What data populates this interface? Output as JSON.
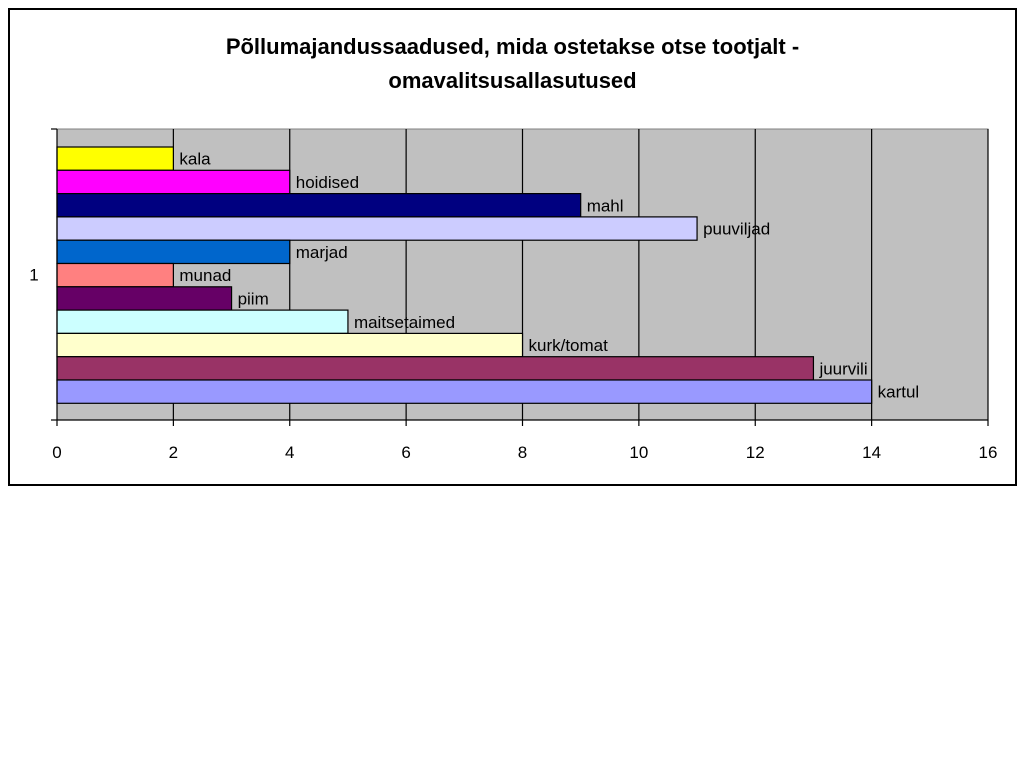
{
  "chart_data": {
    "type": "bar",
    "orientation": "horizontal",
    "title_lines": [
      "Põllumajandussaadused, mida ostetakse otse tootjalt -",
      "omavalitsusallasutused"
    ],
    "category_axis_label": "1",
    "xlim": [
      0,
      16
    ],
    "xticks": [
      0,
      2,
      4,
      6,
      8,
      10,
      12,
      14,
      16
    ],
    "grid": true,
    "legend": "none",
    "plot_background": "#c0c0c0",
    "series": [
      {
        "name": "kala",
        "value": 2,
        "color": "#ffff00"
      },
      {
        "name": "hoidised",
        "value": 4,
        "color": "#ff00ff"
      },
      {
        "name": "mahl",
        "value": 9,
        "color": "#000080"
      },
      {
        "name": "puuviljad",
        "value": 11,
        "color": "#ccccff"
      },
      {
        "name": "marjad",
        "value": 4,
        "color": "#0066cc"
      },
      {
        "name": "munad",
        "value": 2,
        "color": "#ff8080"
      },
      {
        "name": "piim",
        "value": 3,
        "color": "#660066"
      },
      {
        "name": "maitsetaimed",
        "value": 5,
        "color": "#ccffff"
      },
      {
        "name": "kurk/tomat",
        "value": 8,
        "color": "#ffffcc"
      },
      {
        "name": "juurvili",
        "value": 13,
        "color": "#993366"
      },
      {
        "name": "kartul",
        "value": 14,
        "color": "#9999ff"
      }
    ]
  }
}
